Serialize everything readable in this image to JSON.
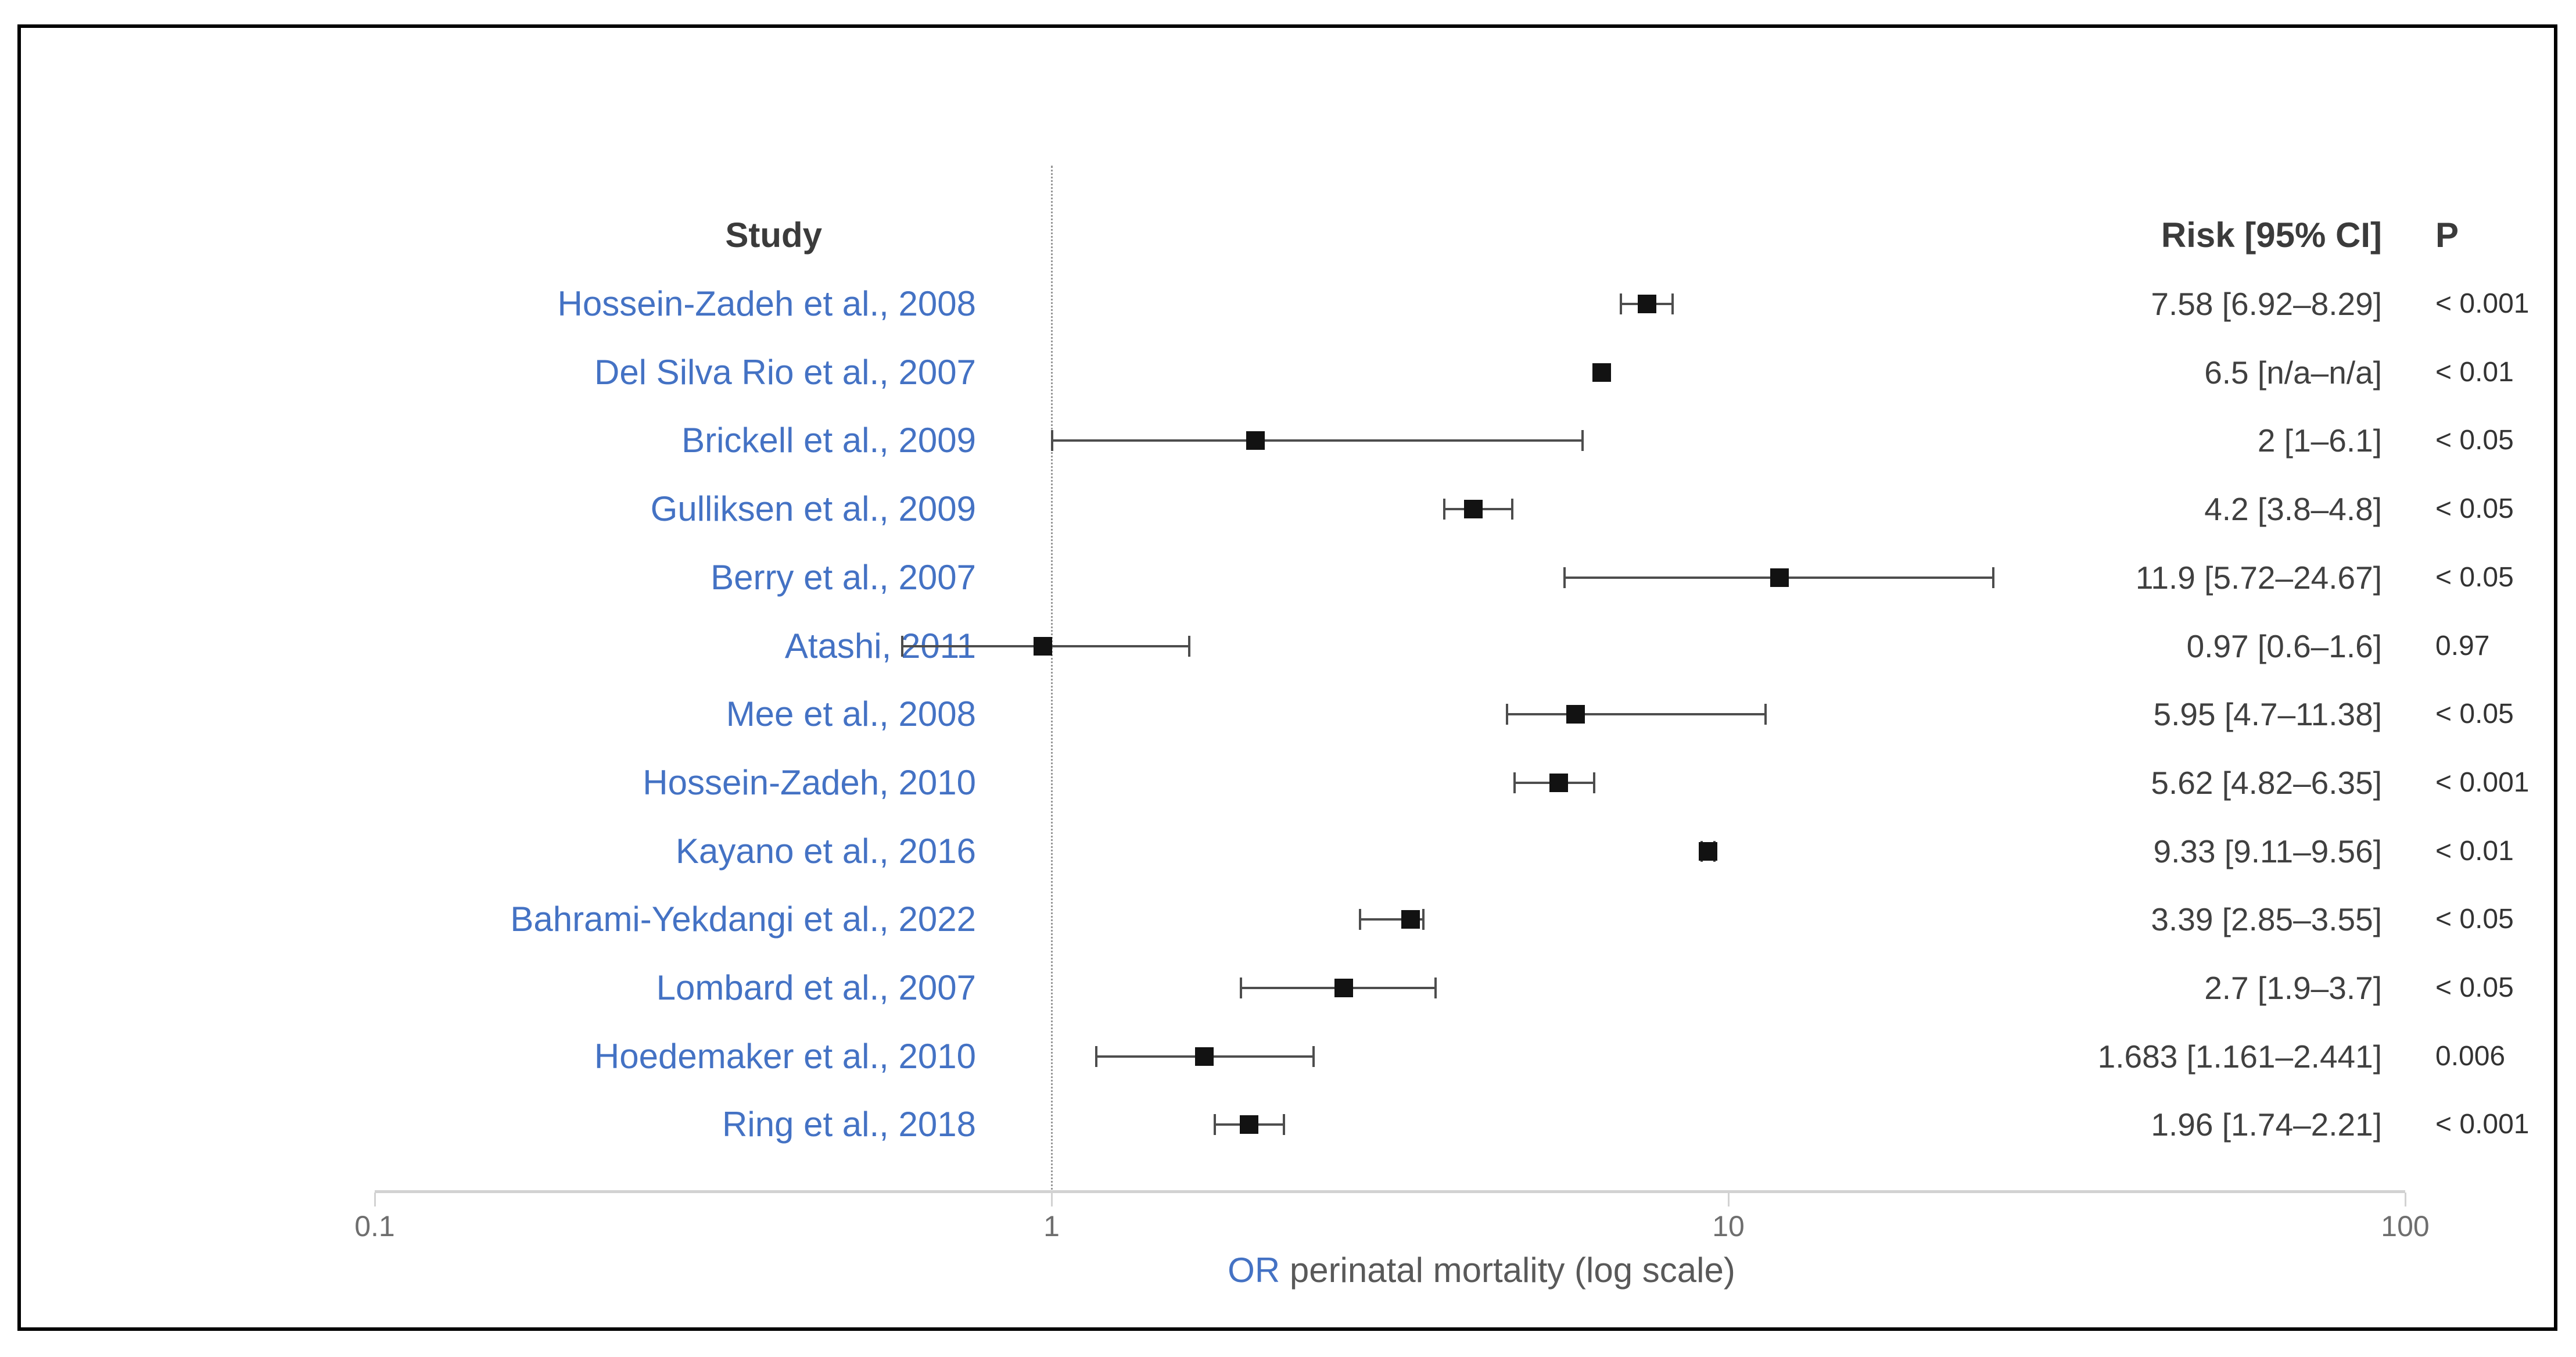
{
  "columns": {
    "study": "Study",
    "risk": "Risk [95% CI]",
    "p": "P"
  },
  "colors": {
    "study_link": "#4472C4",
    "text_dark": "#3b3b3b",
    "risk_text": "#404040",
    "p_text": "#333333",
    "axis_line": "#d2d2d2",
    "tick_text": "#6e6e6e",
    "marker": "#121212",
    "error_bar": "#4d4d4d",
    "ref_line": "#979797",
    "xlabel_text": "#595959",
    "frame": "#000000",
    "bg": "#ffffff"
  },
  "chart_data": {
    "type": "scatter",
    "subtype": "forest-plot",
    "title": "",
    "xlabel": "OR perinatal mortality (log scale)",
    "xlabel_parts": {
      "or": "OR",
      "rest": " perinatal mortality (log scale)"
    },
    "xscale": "log",
    "xlim": [
      0.1,
      100
    ],
    "xticks": [
      0.1,
      1,
      10,
      100
    ],
    "xtick_labels": [
      "0.1",
      "1",
      "10",
      "100"
    ],
    "reference_line_x": 1,
    "grid": false,
    "legend": null,
    "studies": [
      {
        "label": "Hossein-Zadeh et al., 2008",
        "or": 7.58,
        "ci_low": 6.92,
        "ci_high": 8.29,
        "risk_text": "7.58 [6.92–8.29]",
        "p_text": "< 0.001"
      },
      {
        "label": "Del Silva Rio et al., 2007",
        "or": 6.5,
        "ci_low": null,
        "ci_high": null,
        "risk_text": "6.5 [n/a–n/a]",
        "p_text": "< 0.01"
      },
      {
        "label": "Brickell et al., 2009",
        "or": 2,
        "ci_low": 1,
        "ci_high": 6.1,
        "risk_text": "2 [1–6.1]",
        "p_text": "< 0.05"
      },
      {
        "label": "Gulliksen et al., 2009",
        "or": 4.2,
        "ci_low": 3.8,
        "ci_high": 4.8,
        "risk_text": "4.2 [3.8–4.8]",
        "p_text": "< 0.05"
      },
      {
        "label": "Berry et al., 2007",
        "or": 11.9,
        "ci_low": 5.72,
        "ci_high": 24.67,
        "risk_text": "11.9 [5.72–24.67]",
        "p_text": "< 0.05"
      },
      {
        "label": "Atashi, 2011",
        "or": 0.97,
        "ci_low": 0.6,
        "ci_high": 1.6,
        "risk_text": "0.97 [0.6–1.6]",
        "p_text": "0.97"
      },
      {
        "label": "Mee et al., 2008",
        "or": 5.95,
        "ci_low": 4.7,
        "ci_high": 11.38,
        "risk_text": "5.95 [4.7–11.38]",
        "p_text": "< 0.05"
      },
      {
        "label": "Hossein-Zadeh, 2010",
        "or": 5.62,
        "ci_low": 4.82,
        "ci_high": 6.35,
        "risk_text": "5.62 [4.82–6.35]",
        "p_text": "< 0.001"
      },
      {
        "label": "Kayano et al., 2016",
        "or": 9.33,
        "ci_low": 9.11,
        "ci_high": 9.56,
        "risk_text": "9.33 [9.11–9.56]",
        "p_text": "< 0.01"
      },
      {
        "label": "Bahrami-Yekdangi et al., 2022",
        "or": 3.39,
        "ci_low": 2.85,
        "ci_high": 3.55,
        "risk_text": "3.39 [2.85–3.55]",
        "p_text": "< 0.05"
      },
      {
        "label": "Lombard et al., 2007",
        "or": 2.7,
        "ci_low": 1.9,
        "ci_high": 3.7,
        "risk_text": "2.7 [1.9–3.7]",
        "p_text": "< 0.05"
      },
      {
        "label": "Hoedemaker et al., 2010",
        "or": 1.683,
        "ci_low": 1.161,
        "ci_high": 2.441,
        "risk_text": "1.683 [1.161–2.441]",
        "p_text": "0.006"
      },
      {
        "label": "Ring et al., 2018",
        "or": 1.96,
        "ci_low": 1.74,
        "ci_high": 2.21,
        "risk_text": "1.96 [1.74–2.21]",
        "p_text": "< 0.001"
      }
    ]
  }
}
